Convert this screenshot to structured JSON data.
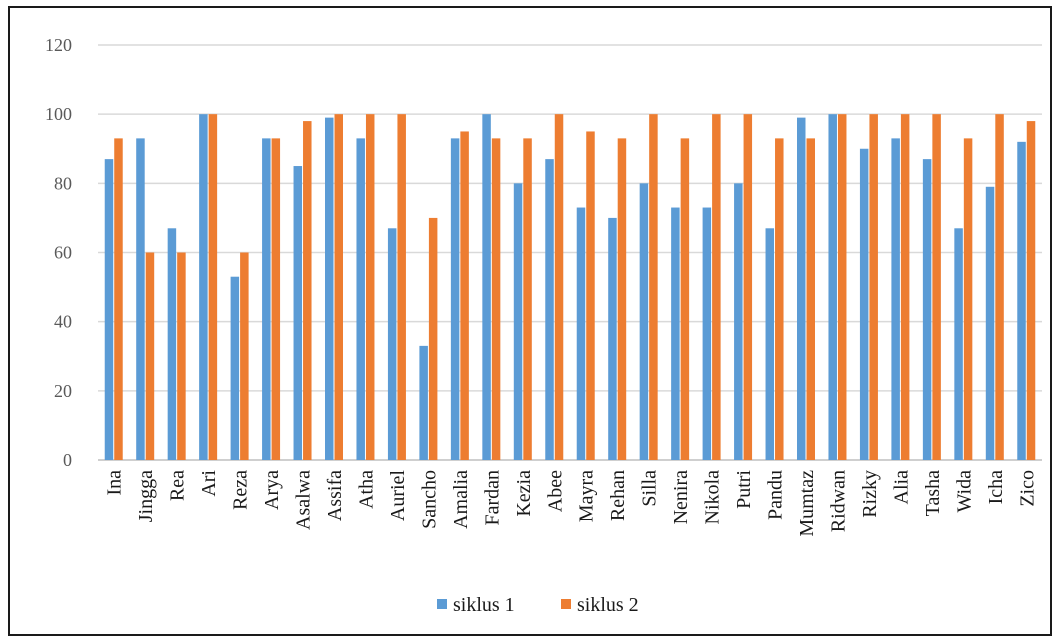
{
  "chart_data": {
    "type": "bar",
    "title": "",
    "xlabel": "",
    "ylabel": "",
    "ylim": [
      0,
      120
    ],
    "yticks": [
      0,
      20,
      40,
      60,
      80,
      100,
      120
    ],
    "grid": true,
    "legend": "bottom",
    "categories": [
      "Ina",
      "Jingga",
      "Rea",
      "Ari",
      "Reza",
      "Arya",
      "Asalwa",
      "Assifa",
      "Atha",
      "Auriel",
      "Sancho",
      "Amalia",
      "Fardan",
      "Kezia",
      "Abee",
      "Mayra",
      "Rehan",
      "Silla",
      "Nenira",
      "Nikola",
      "Putri",
      "Pandu",
      "Mumtaz",
      "Ridwan",
      "Rizky",
      "Alia",
      "Tasha",
      "Wida",
      "Icha",
      "Zico"
    ],
    "series": [
      {
        "name": "siklus 1",
        "color": "#5b9bd5",
        "values": [
          87,
          93,
          67,
          100,
          53,
          93,
          85,
          99,
          93,
          67,
          33,
          93,
          100,
          80,
          87,
          73,
          70,
          80,
          73,
          73,
          80,
          67,
          99,
          100,
          90,
          93,
          87,
          67,
          79,
          92
        ]
      },
      {
        "name": "siklus 2",
        "color": "#ed7d31",
        "values": [
          93,
          60,
          60,
          100,
          60,
          93,
          98,
          100,
          100,
          100,
          70,
          95,
          93,
          93,
          100,
          95,
          93,
          100,
          93,
          100,
          100,
          93,
          93,
          100,
          100,
          100,
          100,
          93,
          100,
          98
        ]
      }
    ]
  }
}
